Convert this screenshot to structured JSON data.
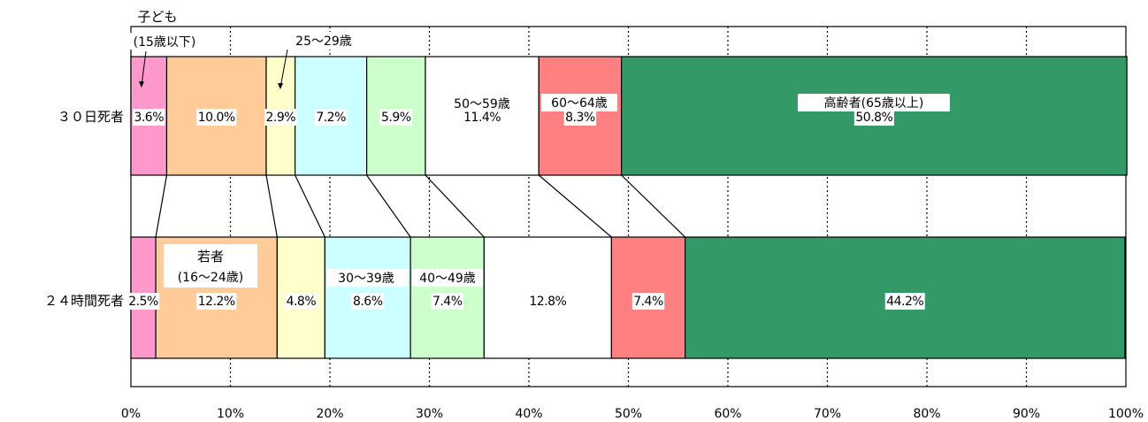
{
  "chart_data": {
    "type": "bar",
    "orientation": "horizontal",
    "stacked": true,
    "stacked_percent": true,
    "categories": [
      "３０日死者",
      "２４時間死者"
    ],
    "series": [
      {
        "name": "子ども\n(15歳以下)",
        "color": "#ff99cc",
        "values": [
          3.6,
          2.5
        ]
      },
      {
        "name": "若者\n(16～24歳)",
        "color": "#ffcc99",
        "values": [
          10.0,
          12.2
        ]
      },
      {
        "name": "25～29歳",
        "color": "#ffffcc",
        "values": [
          2.9,
          4.8
        ]
      },
      {
        "name": "30～39歳",
        "color": "#ccffff",
        "values": [
          7.2,
          8.6
        ]
      },
      {
        "name": "40～49歳",
        "color": "#ccffcc",
        "values": [
          5.9,
          7.4
        ]
      },
      {
        "name": "50～59歳",
        "color": "#ffffff",
        "values": [
          11.4,
          12.8
        ]
      },
      {
        "name": "60～64歳",
        "color": "#ff8080",
        "values": [
          8.3,
          7.4
        ]
      },
      {
        "name": "高齢者(65歳以上)",
        "color": "#339966",
        "values": [
          50.8,
          44.2
        ]
      }
    ],
    "value_labels": [
      [
        "3.6%",
        "10.0%",
        "2.9%",
        "7.2%",
        "5.9%",
        "11.4%",
        "8.3%",
        "50.8%"
      ],
      [
        "2.5%",
        "12.2%",
        "4.8%",
        "8.6%",
        "7.4%",
        "12.8%",
        "7.4%",
        "44.2%"
      ]
    ],
    "xlim": [
      0,
      100
    ],
    "x_ticks": [
      "0%",
      "10%",
      "20%",
      "30%",
      "40%",
      "50%",
      "60%",
      "70%",
      "80%",
      "90%",
      "100%"
    ],
    "grid": true,
    "series_lines": true,
    "annotations": {
      "kodomo": "子ども",
      "kodomo_range": "(15歳以下)",
      "age_25_29": "25～29歳",
      "age_50_59": "50～59歳",
      "age_60_64": "60～64歳",
      "koureisha": "高齢者(65歳以上)",
      "wakamono": "若者",
      "wakamono_range": "(16～24歳)",
      "age_30_39": "30～39歳",
      "age_40_49": "40～49歳"
    }
  }
}
